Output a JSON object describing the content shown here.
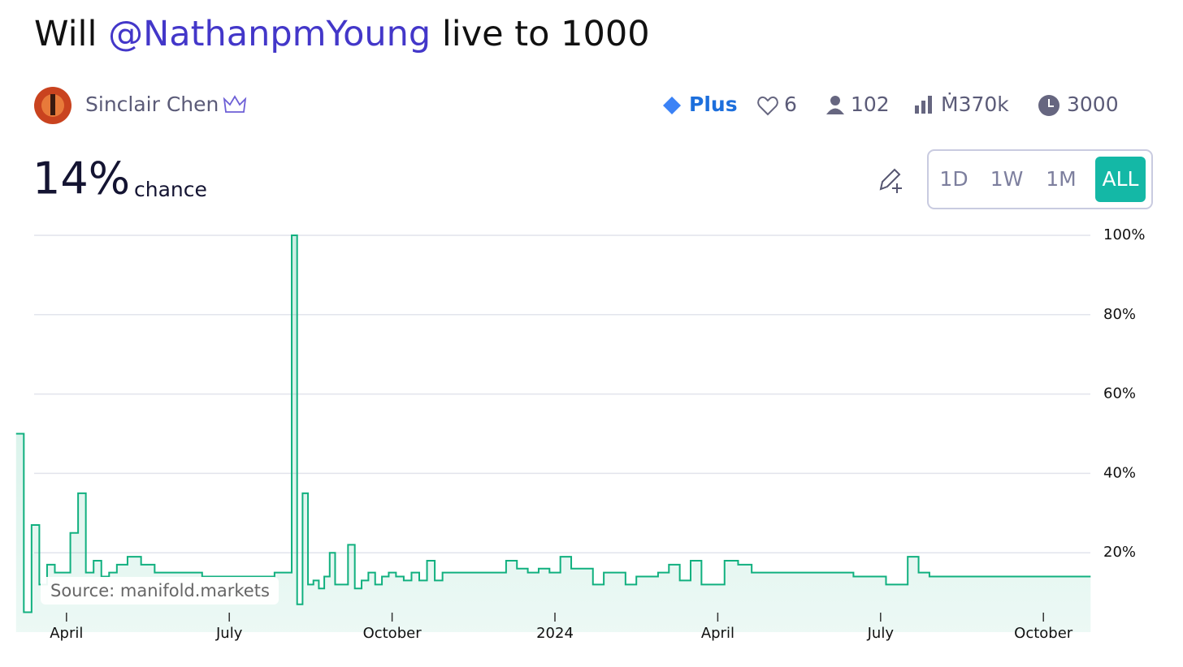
{
  "header": {
    "title": [
      "Will ",
      "@NathanpmYoung",
      " live to 1000"
    ],
    "author": "Sinclair Chen",
    "stats": {
      "plan": "Plus",
      "likes": "6",
      "traders": "102",
      "volume": "Ṁ370k",
      "liquidity": "3000"
    }
  },
  "probability": {
    "value": "14%",
    "label": "chance"
  },
  "range_buttons": [
    "1D",
    "1W",
    "1M",
    "ALL"
  ],
  "source": "Source: manifold.markets",
  "chart_data": {
    "type": "line",
    "step": true,
    "color": "#11b07f",
    "x": [
      "2023-03",
      "2023-03",
      "2023-03",
      "2023-03",
      "2023-03",
      "2023-03",
      "2023-03",
      "2023-04",
      "2023-04",
      "2023-04",
      "2023-04",
      "2023-04",
      "2023-04",
      "2023-04",
      "2023-05",
      "2023-05",
      "2023-05",
      "2023-05",
      "2023-06",
      "2023-06",
      "2023-06",
      "2023-07",
      "2023-07",
      "2023-07",
      "2023-08",
      "2023-08",
      "2023-08",
      "2023-08",
      "2023-08",
      "2023-08",
      "2023-08",
      "2023-08",
      "2023-08",
      "2023-08",
      "2023-09",
      "2023-09",
      "2023-09",
      "2023-09",
      "2023-09",
      "2023-09",
      "2023-09",
      "2023-09",
      "2023-10",
      "2023-10",
      "2023-10",
      "2023-10",
      "2023-10",
      "2023-10",
      "2023-10",
      "2023-11",
      "2023-11",
      "2023-11",
      "2023-12",
      "2023-12",
      "2023-12",
      "2023-12",
      "2023-12",
      "2024-01",
      "2024-01",
      "2024-01",
      "2024-01",
      "2024-01",
      "2024-02",
      "2024-02",
      "2024-02",
      "2024-02",
      "2024-02",
      "2024-03",
      "2024-03",
      "2024-03",
      "2024-03",
      "2024-03",
      "2024-04",
      "2024-04",
      "2024-04",
      "2024-04",
      "2024-05",
      "2024-05",
      "2024-05",
      "2024-06",
      "2024-06",
      "2024-06",
      "2024-07",
      "2024-07",
      "2024-07",
      "2024-07",
      "2024-07",
      "2024-08",
      "2024-08",
      "2024-09",
      "2024-09",
      "2024-10",
      "2024-10"
    ],
    "values": [
      50,
      5,
      27,
      12,
      17,
      15,
      15,
      25,
      35,
      15,
      18,
      14,
      15,
      17,
      19,
      17,
      15,
      15,
      15,
      14,
      14,
      14,
      14,
      15,
      15,
      100,
      7,
      35,
      12,
      13,
      11,
      14,
      20,
      12,
      12,
      22,
      11,
      13,
      15,
      12,
      14,
      15,
      14,
      13,
      15,
      13,
      18,
      13,
      15,
      15,
      15,
      15,
      18,
      16,
      15,
      16,
      15,
      19,
      16,
      16,
      12,
      15,
      15,
      12,
      14,
      14,
      15,
      17,
      13,
      18,
      12,
      12,
      18,
      17,
      15,
      15,
      15,
      15,
      15,
      15,
      14,
      14,
      12,
      12,
      19,
      15,
      14,
      14,
      14,
      14,
      14,
      14,
      14
    ],
    "xlim": [
      "2023-03",
      "2024-11"
    ],
    "xticks": [
      {
        "value": "2023-04",
        "label": "April"
      },
      {
        "value": "2023-07",
        "label": "July"
      },
      {
        "value": "2023-10",
        "label": "October"
      },
      {
        "value": "2024-01",
        "label": "2024"
      },
      {
        "value": "2024-04",
        "label": "April"
      },
      {
        "value": "2024-07",
        "label": "July"
      },
      {
        "value": "2024-10",
        "label": "October"
      }
    ],
    "ylim": [
      0,
      100
    ],
    "yticks": [
      {
        "value": 20,
        "label": "20%"
      },
      {
        "value": 40,
        "label": "40%"
      },
      {
        "value": 60,
        "label": "60%"
      },
      {
        "value": 80,
        "label": "80%"
      },
      {
        "value": 100,
        "label": "100%"
      }
    ],
    "grid": true
  }
}
